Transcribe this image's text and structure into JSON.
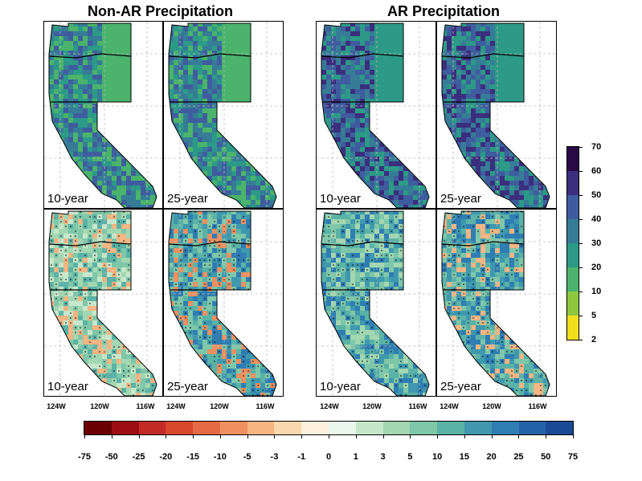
{
  "titles": {
    "left": "Non-AR Precipitation",
    "right": "AR Precipitation"
  },
  "panels": [
    {
      "label": "10-year",
      "group": "non-ar",
      "row": "top"
    },
    {
      "label": "25-year",
      "group": "non-ar",
      "row": "top"
    },
    {
      "label": "10-year",
      "group": "ar",
      "row": "top"
    },
    {
      "label": "25-year",
      "group": "ar",
      "row": "top"
    },
    {
      "label": "10-year",
      "group": "non-ar",
      "row": "bottom"
    },
    {
      "label": "25-year",
      "group": "non-ar",
      "row": "bottom"
    },
    {
      "label": "10-year",
      "group": "ar",
      "row": "bottom"
    },
    {
      "label": "25-year",
      "group": "ar",
      "row": "bottom"
    }
  ],
  "x_ticks": [
    "124W",
    "120W",
    "116W"
  ],
  "top_colorbar": {
    "ticks": [
      "70",
      "60",
      "50",
      "40",
      "30",
      "20",
      "10",
      "5",
      "2"
    ],
    "colors": [
      "#2a0a45",
      "#3b2f7d",
      "#3f5d9e",
      "#367c96",
      "#2c9a86",
      "#4bb36b",
      "#8dc83f",
      "#f1df1d"
    ]
  },
  "bottom_colorbar": {
    "ticks": [
      "-75",
      "-50",
      "-25",
      "-20",
      "-15",
      "-10",
      "-5",
      "-3",
      "-1",
      "0",
      "1",
      "3",
      "5",
      "10",
      "15",
      "20",
      "25",
      "50",
      "75"
    ],
    "colors": [
      "#6b0000",
      "#9c0e14",
      "#c42a26",
      "#d9462c",
      "#e66b44",
      "#f09060",
      "#f6b583",
      "#fbd7ae",
      "#fdf0dc",
      "#eaf6ea",
      "#c7e7cb",
      "#a3d7b1",
      "#7fc7a9",
      "#5bb2a6",
      "#3f98ae",
      "#2f7db2",
      "#2463a7",
      "#1a4a94"
    ]
  }
}
